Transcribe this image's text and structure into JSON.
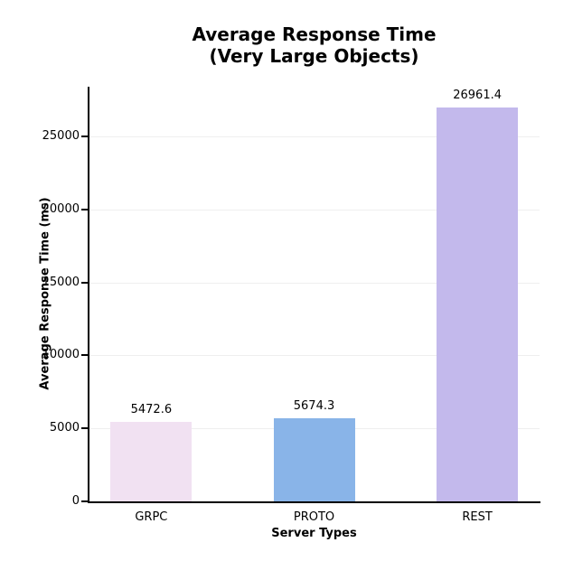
{
  "chart_data": {
    "type": "bar",
    "title": "Average Response Time\n(Very Large Objects)",
    "title_lines": [
      "Average Response Time",
      "(Very Large Objects)"
    ],
    "xlabel": "Server Types",
    "ylabel": "Average Response Time (ms)",
    "categories": [
      "GRPC",
      "PROTO",
      "REST"
    ],
    "values": [
      5472.6,
      5674.3,
      26961.4
    ],
    "bar_labels": [
      "5472.6",
      "5674.3",
      "26961.4"
    ],
    "bar_colors": [
      "#f1e1f2",
      "#89b4e8",
      "#c3b9ec"
    ],
    "ylim": [
      0,
      28400
    ],
    "y_ticks": [
      0,
      5000,
      10000,
      15000,
      20000,
      25000
    ],
    "grid": "horizontal",
    "gridline_color": "#efefef",
    "legend": "none",
    "background_color": "#ffffff",
    "spine_color": "#000000"
  }
}
